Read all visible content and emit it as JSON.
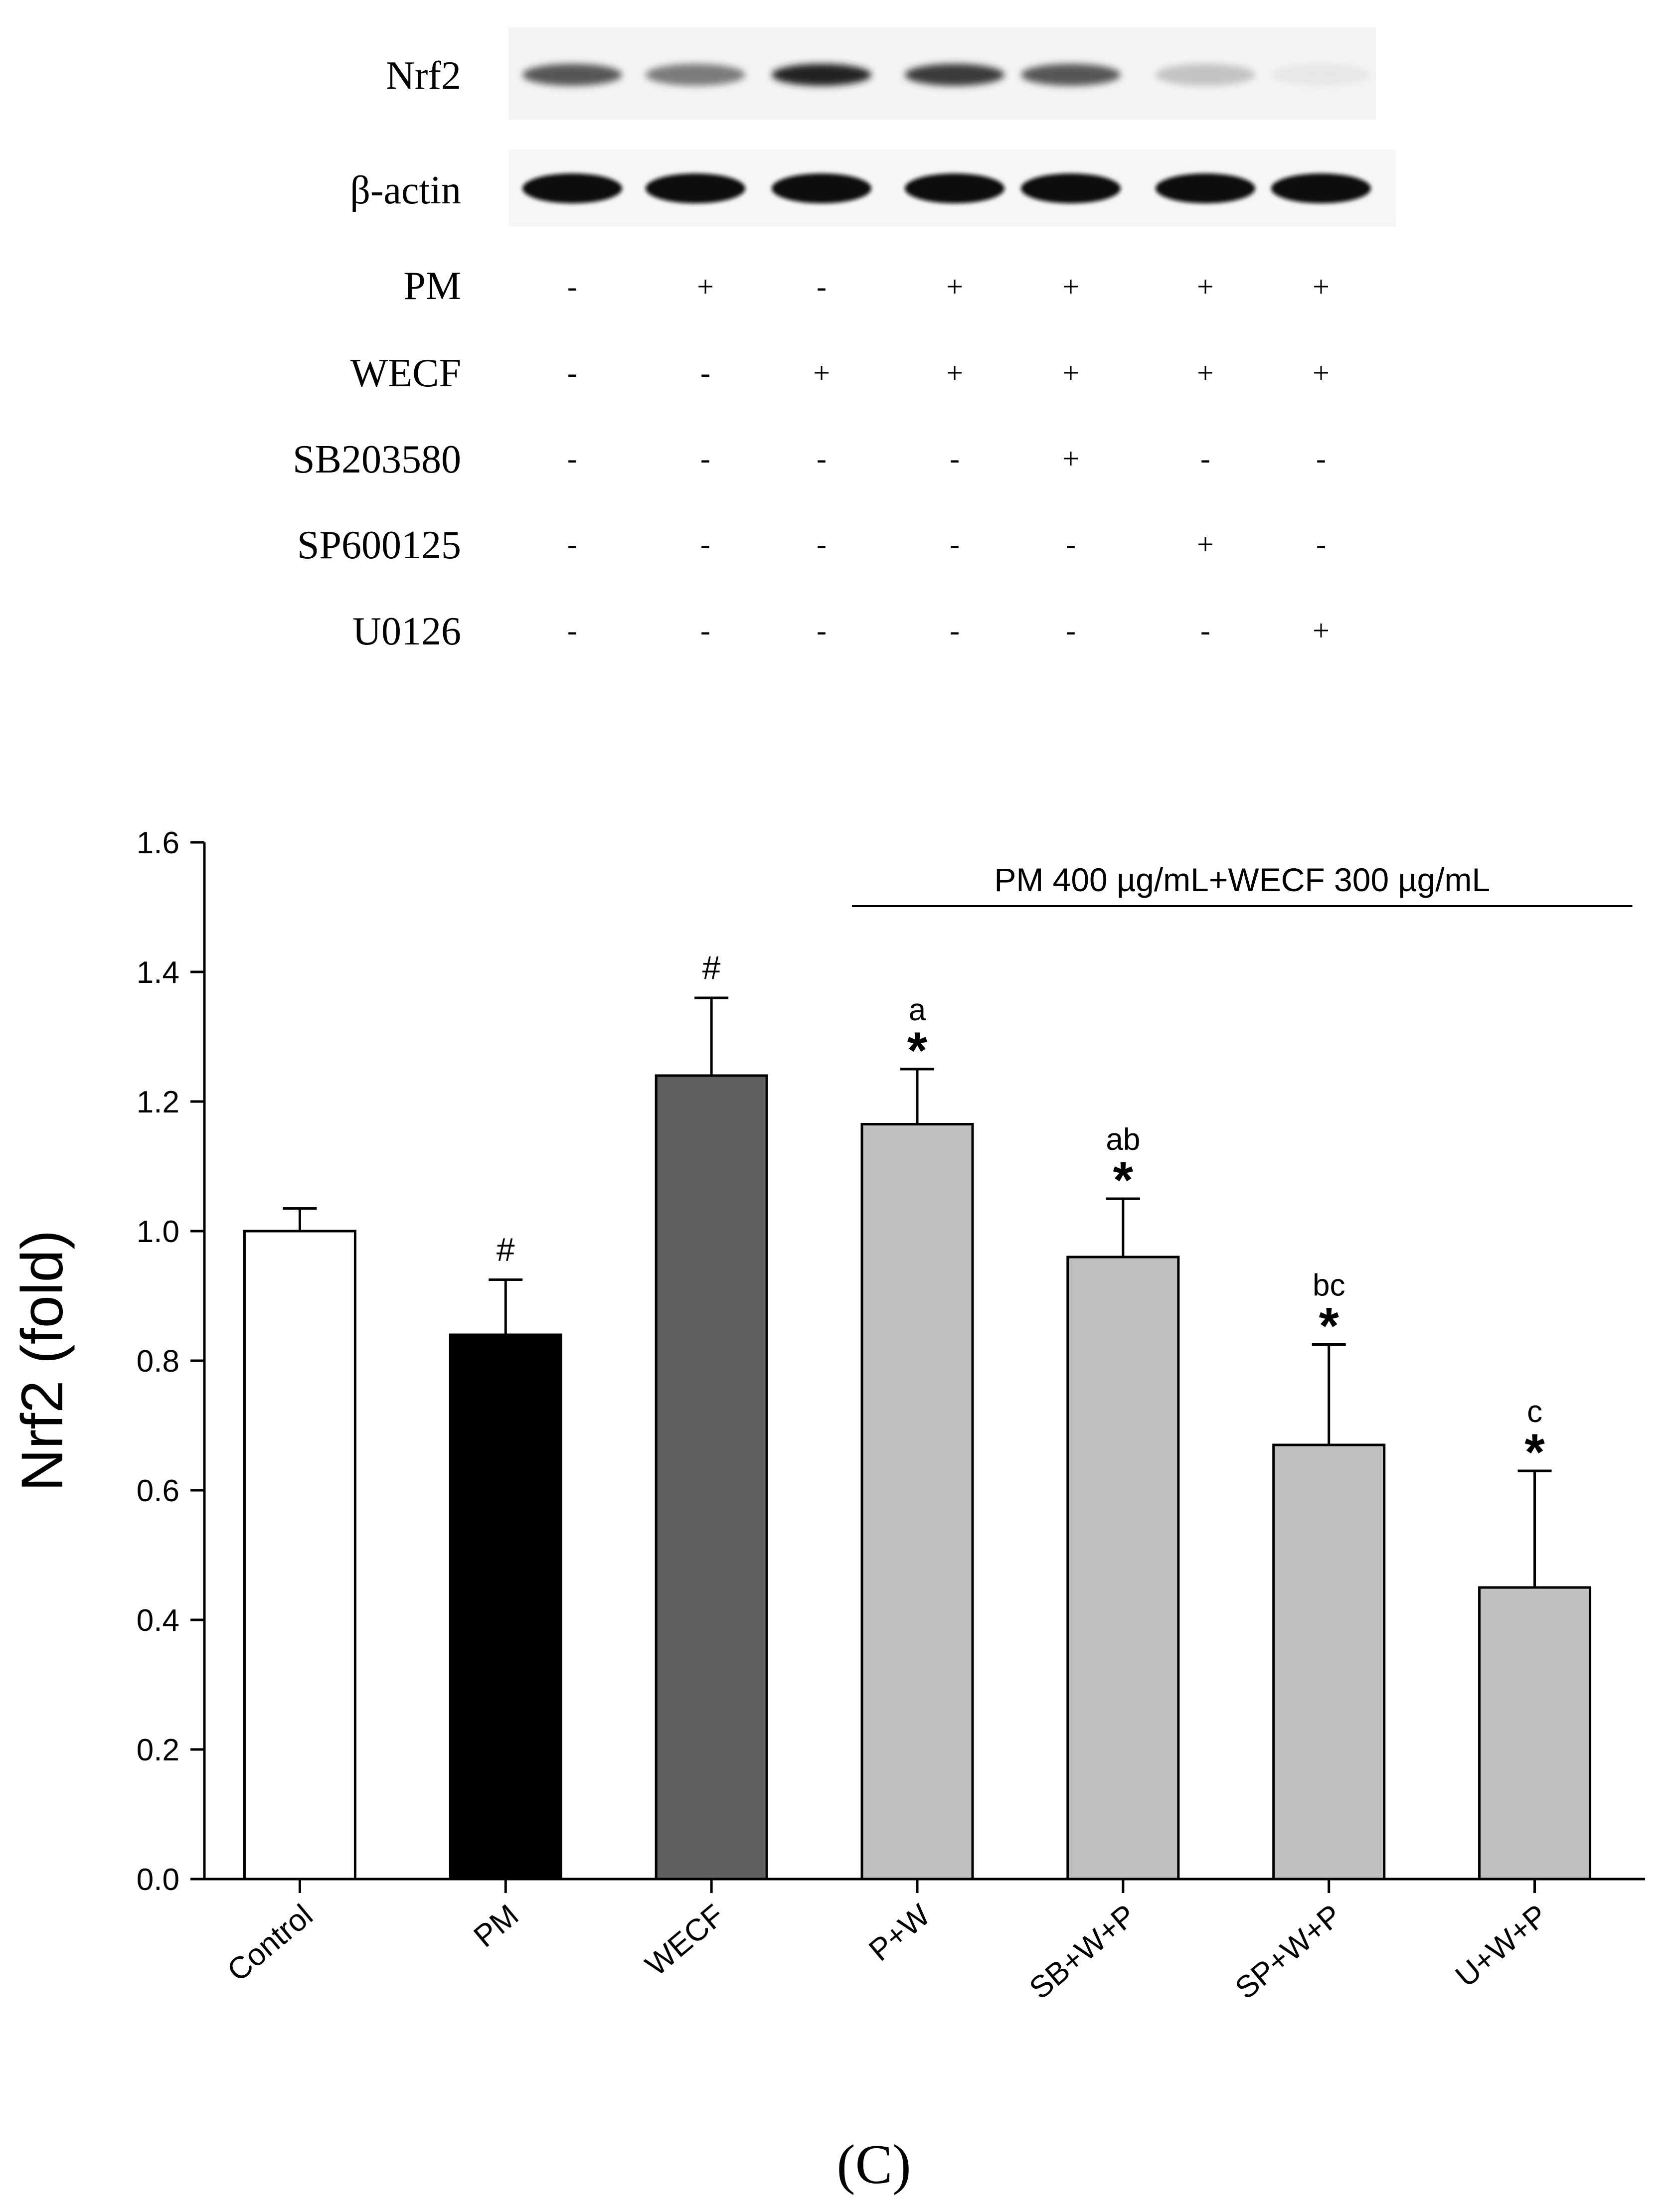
{
  "blot": {
    "rows": [
      {
        "label": "Nrf2",
        "intensity": [
          0.7,
          0.55,
          0.92,
          0.82,
          0.7,
          0.25,
          0.1
        ]
      },
      {
        "label": "β-actin",
        "intensity": [
          1.0,
          1.0,
          1.0,
          1.0,
          1.0,
          1.0,
          1.0
        ]
      }
    ]
  },
  "treatments": [
    {
      "label": "PM",
      "marks": [
        "-",
        "+",
        "-",
        "+",
        "+",
        "+",
        "+"
      ]
    },
    {
      "label": "WECF",
      "marks": [
        "-",
        "-",
        "+",
        "+",
        "+",
        "+",
        "+"
      ]
    },
    {
      "label": "SB203580",
      "marks": [
        "-",
        "-",
        "-",
        "-",
        "+",
        "-",
        "-"
      ]
    },
    {
      "label": "SP600125",
      "marks": [
        "-",
        "-",
        "-",
        "-",
        "-",
        "+",
        "-"
      ]
    },
    {
      "label": "U0126",
      "marks": [
        "-",
        "-",
        "-",
        "-",
        "-",
        "-",
        "+"
      ]
    }
  ],
  "chart_data": {
    "type": "bar",
    "title": "",
    "xlabel": "",
    "ylabel": "Nrf2 (fold)",
    "ylim": [
      0,
      1.6
    ],
    "yticks": [
      "0.0",
      "0.2",
      "0.4",
      "0.6",
      "0.8",
      "1.0",
      "1.2",
      "1.4",
      "1.6"
    ],
    "categories": [
      "Control",
      "PM",
      "WECF",
      "P+W",
      "SB+W+P",
      "SP+W+P",
      "U+W+P"
    ],
    "values": [
      1.0,
      0.84,
      1.24,
      1.165,
      0.96,
      0.67,
      0.45
    ],
    "errors": [
      0.035,
      0.085,
      0.12,
      0.085,
      0.09,
      0.155,
      0.18
    ],
    "letters": [
      "",
      "",
      "",
      "a",
      "ab",
      "bc",
      "c"
    ],
    "symbols": [
      "",
      "#",
      "#",
      "*",
      "*",
      "*",
      "*"
    ],
    "colors": [
      "#ffffff",
      "#000000",
      "#606060",
      "#c0c0c0",
      "#c0c0c0",
      "#c0c0c0",
      "#c0c0c0"
    ],
    "bracket_label": "PM 400 µg/mL+WECF 300 µg/mL",
    "bracket_span": [
      "P+W",
      "U+W+P"
    ]
  },
  "panel_label": "(C)"
}
